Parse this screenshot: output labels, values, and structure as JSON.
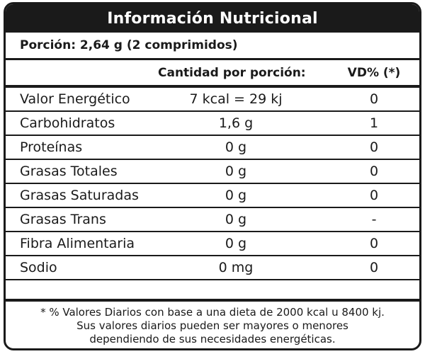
{
  "title": "Información Nutricional",
  "portion": "Porción: 2,64 g (2 comprimidos)",
  "headers": {
    "quantity": "Cantidad por porción:",
    "vd": "VD% (*)"
  },
  "rows": [
    {
      "name": "Valor Energético",
      "quantity": "7 kcal = 29 kj",
      "vd": "0"
    },
    {
      "name": "Carbohidratos",
      "quantity": "1,6 g",
      "vd": "1"
    },
    {
      "name": "Proteínas",
      "quantity": "0 g",
      "vd": "0"
    },
    {
      "name": "Grasas Totales",
      "quantity": "0 g",
      "vd": "0"
    },
    {
      "name": "Grasas Saturadas",
      "quantity": "0 g",
      "vd": "0"
    },
    {
      "name": "Grasas Trans",
      "quantity": "0 g",
      "vd": "-"
    },
    {
      "name": "Fibra Alimentaria",
      "quantity": "0 g",
      "vd": "0"
    },
    {
      "name": "Sodio",
      "quantity": "0 mg",
      "vd": "0"
    },
    {
      "name": "",
      "quantity": "",
      "vd": ""
    }
  ],
  "footnote": [
    "* % Valores Diarios con base a una dieta de 2000 kcal u 8400 kj.",
    "Sus valores diarios pueden ser mayores o menores",
    "dependiendo de sus necesidades energéticas."
  ],
  "colors": {
    "ink": "#1a1a1a",
    "background": "#ffffff"
  }
}
